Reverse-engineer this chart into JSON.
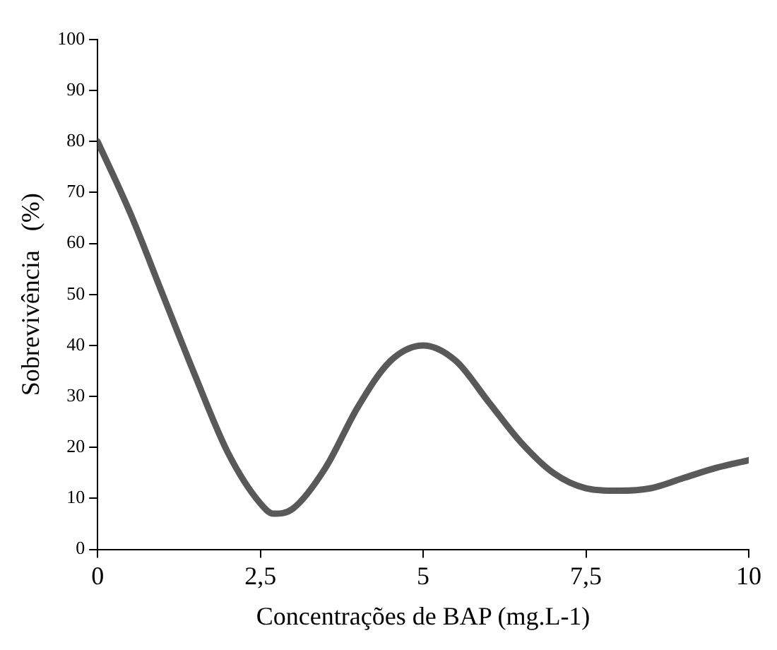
{
  "chart_data": {
    "type": "line",
    "xlabel": "Concentrações de BAP (mg.L-1)",
    "ylabel": "Sobrevivência   (%)",
    "x": [
      0,
      0.5,
      1,
      1.5,
      2,
      2.5,
      2.7,
      3,
      3.5,
      4,
      4.5,
      5,
      5.5,
      6,
      6.5,
      7,
      7.5,
      8,
      8.5,
      9,
      9.5,
      10
    ],
    "series": [
      {
        "color": "#595959",
        "values": [
          80,
          66,
          50,
          34,
          19,
          9,
          7,
          8,
          16,
          28,
          37,
          40,
          37,
          29,
          21,
          15,
          12,
          11.5,
          12,
          14,
          16,
          17.5
        ]
      }
    ],
    "xlim": [
      0,
      10
    ],
    "xticks": [
      0,
      {
        "value": 2.5,
        "label": "2,5"
      },
      5,
      {
        "value": 7.5,
        "label": "7,5"
      },
      10
    ],
    "ylim": [
      0,
      100
    ],
    "yticks": [
      0,
      10,
      20,
      30,
      40,
      50,
      60,
      70,
      80,
      90,
      100
    ],
    "grid": false,
    "legend": false,
    "marker": "none",
    "line_style": "solid"
  }
}
